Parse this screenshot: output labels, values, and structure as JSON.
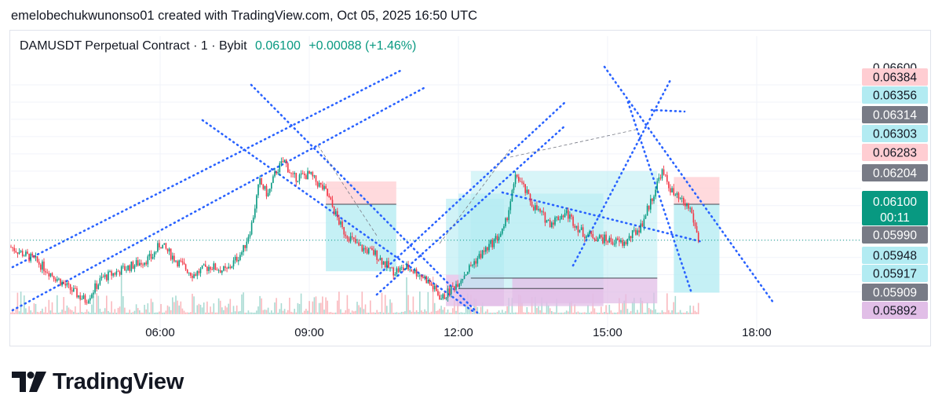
{
  "header": {
    "attribution": "emelobechukwunonso01 created with TradingView.com, Oct 05, 2025 16:50 UTC"
  },
  "legend": {
    "symbol": "DAMUSDT Perpetual Contract · 1 · Bybit",
    "last": "0.06100",
    "change": "+0.00088 (+1.46%)"
  },
  "brand": {
    "name": "TradingView",
    "logo_icon": "tradingview-logo-icon"
  },
  "colors": {
    "up": "#089981",
    "down": "#f23645",
    "trendline": "#2962ff",
    "long_zone": "#b2ebf2",
    "short_zone": "#ffcdd2",
    "purple_zone": "#e1bee7"
  },
  "chart_data": {
    "type": "candlestick",
    "x_axis": {
      "ticks": [
        "06:00",
        "09:00",
        "12:00",
        "15:00",
        "18:00"
      ]
    },
    "y_axis": {
      "range": [
        0.0589,
        0.066
      ],
      "labels": [
        {
          "text": "0.06600",
          "kind": "scale"
        },
        {
          "text": "0.06384",
          "kind": "red"
        },
        {
          "text": "0.06356",
          "kind": "cyan"
        },
        {
          "text": "0.06314",
          "kind": "gray"
        },
        {
          "text": "0.06303",
          "kind": "cyan"
        },
        {
          "text": "0.06283",
          "kind": "red"
        },
        {
          "text": "0.06204",
          "kind": "gray"
        },
        {
          "text": "0.06100",
          "kind": "last",
          "sub": "00:11"
        },
        {
          "text": "0.05990",
          "kind": "gray"
        },
        {
          "text": "0.05948",
          "kind": "cyan"
        },
        {
          "text": "0.05917",
          "kind": "cyan"
        },
        {
          "text": "0.05909",
          "kind": "gray"
        },
        {
          "text": "0.05892",
          "kind": "purple"
        }
      ]
    },
    "last_price": 0.061,
    "price_path": [
      [
        "03:00",
        0.0608
      ],
      [
        "03:30",
        0.0604
      ],
      [
        "04:10",
        0.0596
      ],
      [
        "04:30",
        0.05925
      ],
      [
        "04:50",
        0.0599
      ],
      [
        "05:20",
        0.0602
      ],
      [
        "05:50",
        0.0605
      ],
      [
        "06:00",
        0.0609
      ],
      [
        "06:20",
        0.0604
      ],
      [
        "06:40",
        0.06
      ],
      [
        "07:00",
        0.06025
      ],
      [
        "07:20",
        0.0601
      ],
      [
        "07:40",
        0.0607
      ],
      [
        "07:50",
        0.0614
      ],
      [
        "08:00",
        0.0627
      ],
      [
        "08:10",
        0.0623
      ],
      [
        "08:20",
        0.063
      ],
      [
        "08:30",
        0.0633
      ],
      [
        "08:40",
        0.0628
      ],
      [
        "09:00",
        0.0629
      ],
      [
        "09:20",
        0.0624
      ],
      [
        "09:40",
        0.0613
      ],
      [
        "10:00",
        0.0608
      ],
      [
        "10:20",
        0.0606
      ],
      [
        "10:40",
        0.0601
      ],
      [
        "11:00",
        0.0602
      ],
      [
        "11:20",
        0.0599
      ],
      [
        "11:40",
        0.0593
      ],
      [
        "12:00",
        0.0598
      ],
      [
        "12:20",
        0.0604
      ],
      [
        "12:40",
        0.0609
      ],
      [
        "12:55",
        0.0613
      ],
      [
        "13:10",
        0.0629
      ],
      [
        "13:30",
        0.062
      ],
      [
        "13:50",
        0.0615
      ],
      [
        "14:10",
        0.0618
      ],
      [
        "14:30",
        0.0612
      ],
      [
        "15:00",
        0.061
      ],
      [
        "15:20",
        0.0609
      ],
      [
        "15:40",
        0.0614
      ],
      [
        "15:55",
        0.0623
      ],
      [
        "16:05",
        0.063
      ],
      [
        "16:20",
        0.0623
      ],
      [
        "16:40",
        0.0619
      ],
      [
        "16:50",
        0.061
      ]
    ],
    "annotations": {
      "long_positions": 4,
      "short_positions": 1,
      "trendlines": "blue dotted channels"
    }
  }
}
